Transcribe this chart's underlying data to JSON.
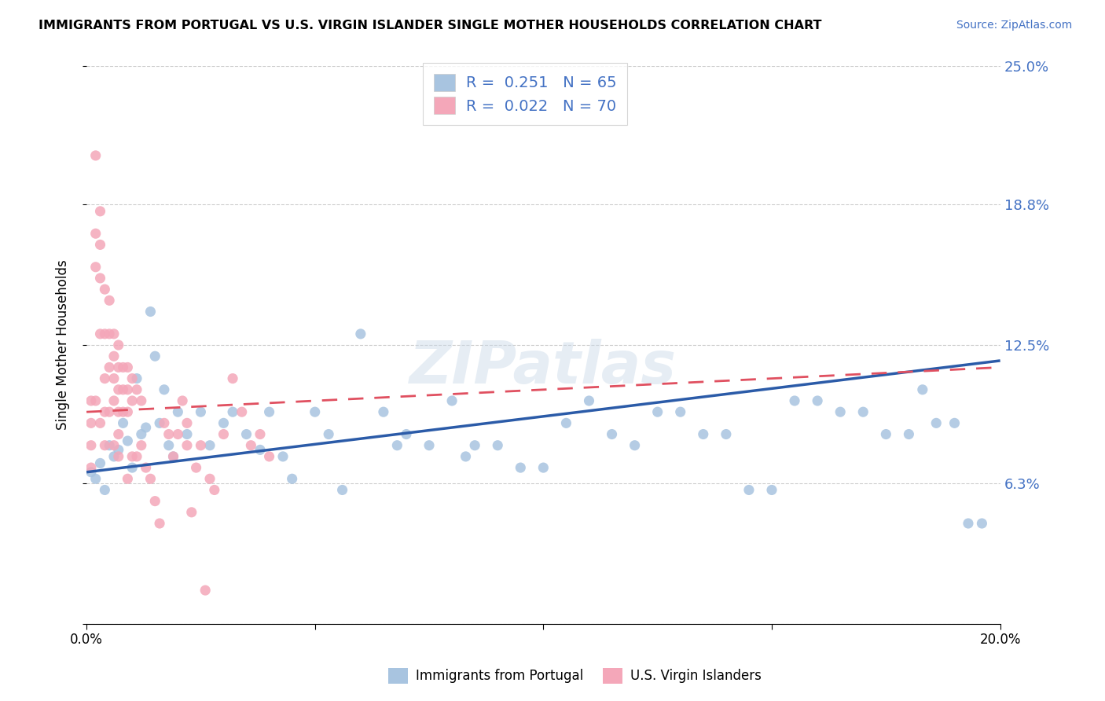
{
  "title": "IMMIGRANTS FROM PORTUGAL VS U.S. VIRGIN ISLANDER SINGLE MOTHER HOUSEHOLDS CORRELATION CHART",
  "source": "Source: ZipAtlas.com",
  "ylabel": "Single Mother Households",
  "xlabel_blue": "Immigrants from Portugal",
  "xlabel_pink": "U.S. Virgin Islanders",
  "xlim": [
    0.0,
    0.2
  ],
  "ylim": [
    0.0,
    0.25
  ],
  "yticks": [
    0.0,
    0.063,
    0.125,
    0.188,
    0.25
  ],
  "ytick_labels": [
    "",
    "6.3%",
    "12.5%",
    "18.8%",
    "25.0%"
  ],
  "xticks": [
    0.0,
    0.05,
    0.1,
    0.15,
    0.2
  ],
  "xtick_labels": [
    "0.0%",
    "",
    "",
    "",
    "20.0%"
  ],
  "blue_R": 0.251,
  "blue_N": 65,
  "pink_R": 0.022,
  "pink_N": 70,
  "blue_color": "#a8c4e0",
  "pink_color": "#f4a7b9",
  "blue_line_color": "#2B5BA8",
  "pink_line_color": "#E05060",
  "watermark": "ZIPatlas",
  "blue_line_start_y": 0.068,
  "blue_line_end_y": 0.118,
  "pink_line_start_y": 0.095,
  "pink_line_end_y": 0.115,
  "blue_scatter_x": [
    0.001,
    0.002,
    0.003,
    0.004,
    0.005,
    0.006,
    0.007,
    0.008,
    0.009,
    0.01,
    0.011,
    0.012,
    0.013,
    0.014,
    0.015,
    0.016,
    0.017,
    0.018,
    0.019,
    0.02,
    0.022,
    0.025,
    0.027,
    0.03,
    0.032,
    0.035,
    0.038,
    0.04,
    0.043,
    0.045,
    0.05,
    0.053,
    0.056,
    0.06,
    0.065,
    0.068,
    0.07,
    0.075,
    0.08,
    0.083,
    0.085,
    0.09,
    0.095,
    0.1,
    0.105,
    0.11,
    0.115,
    0.12,
    0.125,
    0.13,
    0.135,
    0.14,
    0.145,
    0.15,
    0.155,
    0.16,
    0.165,
    0.17,
    0.175,
    0.18,
    0.183,
    0.186,
    0.19,
    0.193,
    0.196
  ],
  "blue_scatter_y": [
    0.068,
    0.065,
    0.072,
    0.06,
    0.08,
    0.075,
    0.078,
    0.09,
    0.082,
    0.07,
    0.11,
    0.085,
    0.088,
    0.14,
    0.12,
    0.09,
    0.105,
    0.08,
    0.075,
    0.095,
    0.085,
    0.095,
    0.08,
    0.09,
    0.095,
    0.085,
    0.078,
    0.095,
    0.075,
    0.065,
    0.095,
    0.085,
    0.06,
    0.13,
    0.095,
    0.08,
    0.085,
    0.08,
    0.1,
    0.075,
    0.08,
    0.08,
    0.07,
    0.07,
    0.09,
    0.1,
    0.085,
    0.08,
    0.095,
    0.095,
    0.085,
    0.085,
    0.06,
    0.06,
    0.1,
    0.1,
    0.095,
    0.095,
    0.085,
    0.085,
    0.105,
    0.09,
    0.09,
    0.045,
    0.045
  ],
  "pink_scatter_x": [
    0.001,
    0.001,
    0.001,
    0.001,
    0.002,
    0.002,
    0.002,
    0.002,
    0.003,
    0.003,
    0.003,
    0.003,
    0.003,
    0.004,
    0.004,
    0.004,
    0.004,
    0.004,
    0.005,
    0.005,
    0.005,
    0.005,
    0.006,
    0.006,
    0.006,
    0.006,
    0.006,
    0.007,
    0.007,
    0.007,
    0.007,
    0.007,
    0.007,
    0.008,
    0.008,
    0.008,
    0.009,
    0.009,
    0.009,
    0.009,
    0.01,
    0.01,
    0.01,
    0.011,
    0.011,
    0.012,
    0.012,
    0.013,
    0.014,
    0.015,
    0.016,
    0.017,
    0.018,
    0.019,
    0.02,
    0.021,
    0.022,
    0.022,
    0.023,
    0.024,
    0.025,
    0.026,
    0.027,
    0.028,
    0.03,
    0.032,
    0.034,
    0.036,
    0.038,
    0.04
  ],
  "pink_scatter_y": [
    0.1,
    0.09,
    0.08,
    0.07,
    0.21,
    0.175,
    0.16,
    0.1,
    0.185,
    0.17,
    0.155,
    0.13,
    0.09,
    0.15,
    0.13,
    0.11,
    0.095,
    0.08,
    0.145,
    0.13,
    0.115,
    0.095,
    0.13,
    0.12,
    0.11,
    0.1,
    0.08,
    0.125,
    0.115,
    0.105,
    0.095,
    0.085,
    0.075,
    0.115,
    0.105,
    0.095,
    0.115,
    0.105,
    0.095,
    0.065,
    0.11,
    0.1,
    0.075,
    0.105,
    0.075,
    0.1,
    0.08,
    0.07,
    0.065,
    0.055,
    0.045,
    0.09,
    0.085,
    0.075,
    0.085,
    0.1,
    0.09,
    0.08,
    0.05,
    0.07,
    0.08,
    0.015,
    0.065,
    0.06,
    0.085,
    0.11,
    0.095,
    0.08,
    0.085,
    0.075
  ]
}
